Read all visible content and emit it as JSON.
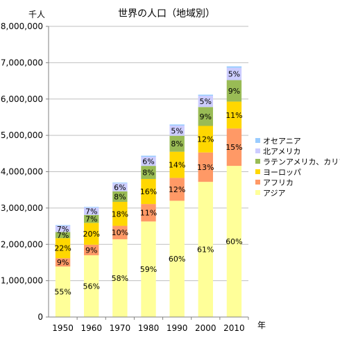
{
  "chart_data": {
    "type": "bar",
    "stacked": true,
    "title": "世界の人口（地域別）",
    "ylabel": "千人",
    "xlabel": "年",
    "ylim": [
      0,
      8000000
    ],
    "y_ticks": [
      "0",
      "1,000,000",
      "2,000,000",
      "3,000,000",
      "4,000,000",
      "5,000,000",
      "6,000,000",
      "7,000,000",
      "8,000,000"
    ],
    "grid": true,
    "legend_position": "right",
    "categories": [
      "1950",
      "1960",
      "1970",
      "1980",
      "1990",
      "2000",
      "2010"
    ],
    "totals": [
      2530000,
      3030000,
      3690000,
      4440000,
      5310000,
      6120000,
      6900000
    ],
    "series": [
      {
        "name": "アジア",
        "color": "#FFFF99",
        "values": [
          1390000,
          1700000,
          2140000,
          2630000,
          3200000,
          3720000,
          4160000
        ],
        "labels": [
          "55%",
          "56%",
          "58%",
          "59%",
          "60%",
          "61%",
          "60%"
        ]
      },
      {
        "name": "アフリカ",
        "color": "#FF9966",
        "values": [
          230000,
          290000,
          370000,
          480000,
          630000,
          810000,
          1030000
        ],
        "labels": [
          "9%",
          "9%",
          "10%",
          "11%",
          "12%",
          "13%",
          "15%"
        ]
      },
      {
        "name": "ヨーロッパ",
        "color": "#FFD700",
        "values": [
          550000,
          600000,
          660000,
          690000,
          720000,
          730000,
          740000
        ],
        "labels": [
          "22%",
          "20%",
          "18%",
          "16%",
          "14%",
          "12%",
          "11%"
        ]
      },
      {
        "name": "ラテンアメリカ、カリブ",
        "color": "#99BB55",
        "values": [
          170000,
          220000,
          290000,
          360000,
          440000,
          520000,
          590000
        ],
        "labels": [
          "7%",
          "7%",
          "8%",
          "8%",
          "8%",
          "9%",
          "9%"
        ]
      },
      {
        "name": "北アメリカ",
        "color": "#CCCCFF",
        "values": [
          170000,
          200000,
          220000,
          250000,
          280000,
          310000,
          340000
        ],
        "labels": [
          "7%",
          "7%",
          "6%",
          "6%",
          "5%",
          "5%",
          "5%"
        ]
      },
      {
        "name": "オセアニア",
        "color": "#99CCFF",
        "values": [
          20000,
          20000,
          20000,
          30000,
          30000,
          30000,
          40000
        ],
        "labels": [
          "",
          "",
          "",
          "",
          "",
          "",
          ""
        ]
      }
    ]
  }
}
